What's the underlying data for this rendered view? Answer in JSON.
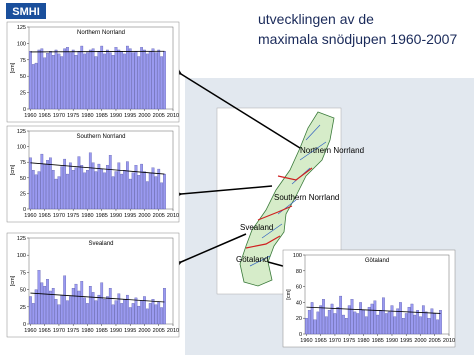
{
  "header": {
    "logo": "SMHI",
    "title_line1": "utvecklingen av de",
    "title_line2": "maximala snödjupen 1960-2007"
  },
  "map": {
    "labels": [
      "Northern Norrland",
      "Southern Norrland",
      "Svealand",
      "Götaland"
    ]
  },
  "chart_data": [
    {
      "type": "bar",
      "title": "Northern Norrland",
      "y_label": "[cm]",
      "color": "#9a9af0",
      "x": [
        1960,
        1961,
        1962,
        1963,
        1964,
        1965,
        1966,
        1967,
        1968,
        1969,
        1970,
        1971,
        1972,
        1973,
        1974,
        1975,
        1976,
        1977,
        1978,
        1979,
        1980,
        1981,
        1982,
        1983,
        1984,
        1985,
        1986,
        1987,
        1988,
        1989,
        1990,
        1991,
        1992,
        1993,
        1994,
        1995,
        1996,
        1997,
        1998,
        1999,
        2000,
        2001,
        2002,
        2003,
        2004,
        2005,
        2006,
        2007
      ],
      "values": [
        88,
        68,
        70,
        90,
        92,
        78,
        85,
        88,
        82,
        90,
        84,
        80,
        92,
        94,
        86,
        90,
        82,
        88,
        96,
        84,
        86,
        90,
        92,
        80,
        88,
        96,
        84,
        90,
        86,
        82,
        94,
        90,
        88,
        84,
        96,
        92,
        86,
        88,
        80,
        94,
        90,
        84,
        88,
        92,
        86,
        90,
        80,
        88
      ],
      "trend": {
        "x": [
          1960,
          2007
        ],
        "values": [
          87,
          88
        ]
      },
      "xlim": [
        1959.5,
        2010
      ],
      "xticks": [
        1960,
        1965,
        1970,
        1975,
        1980,
        1985,
        1990,
        1995,
        2000,
        2005,
        2010
      ],
      "ylim": [
        0,
        125
      ],
      "yticks": [
        0,
        25,
        50,
        75,
        100,
        125
      ]
    },
    {
      "type": "bar",
      "title": "Southern Norrland",
      "y_label": "[cm]",
      "color": "#9a9af0",
      "x": [
        1960,
        1961,
        1962,
        1963,
        1964,
        1965,
        1966,
        1967,
        1968,
        1969,
        1970,
        1971,
        1972,
        1973,
        1974,
        1975,
        1976,
        1977,
        1978,
        1979,
        1980,
        1981,
        1982,
        1983,
        1984,
        1985,
        1986,
        1987,
        1988,
        1989,
        1990,
        1991,
        1992,
        1993,
        1994,
        1995,
        1996,
        1997,
        1998,
        1999,
        2000,
        2001,
        2002,
        2003,
        2004,
        2005,
        2006,
        2007
      ],
      "values": [
        82,
        62,
        55,
        60,
        88,
        72,
        78,
        82,
        62,
        48,
        52,
        68,
        80,
        56,
        74,
        62,
        66,
        84,
        70,
        58,
        62,
        90,
        74,
        60,
        72,
        64,
        58,
        70,
        86,
        52,
        60,
        74,
        56,
        62,
        76,
        48,
        58,
        70,
        54,
        72,
        60,
        44,
        58,
        66,
        52,
        64,
        42,
        56
      ],
      "trend": {
        "x": [
          1960,
          2007
        ],
        "values": [
          74,
          56
        ]
      },
      "xlim": [
        1959.5,
        2010
      ],
      "xticks": [
        1960,
        1965,
        1970,
        1975,
        1980,
        1985,
        1990,
        1995,
        2000,
        2005,
        2010
      ],
      "ylim": [
        0,
        125
      ],
      "yticks": [
        0,
        25,
        50,
        75,
        100,
        125
      ]
    },
    {
      "type": "bar",
      "title": "Svealand",
      "y_label": "[cm]",
      "color": "#9a9af0",
      "x": [
        1960,
        1961,
        1962,
        1963,
        1964,
        1965,
        1966,
        1967,
        1968,
        1969,
        1970,
        1971,
        1972,
        1973,
        1974,
        1975,
        1976,
        1977,
        1978,
        1979,
        1980,
        1981,
        1982,
        1983,
        1984,
        1985,
        1986,
        1987,
        1988,
        1989,
        1990,
        1991,
        1992,
        1993,
        1994,
        1995,
        1996,
        1997,
        1998,
        1999,
        2000,
        2001,
        2002,
        2003,
        2004,
        2005,
        2006,
        2007
      ],
      "values": [
        40,
        30,
        50,
        78,
        60,
        55,
        65,
        48,
        52,
        36,
        28,
        42,
        70,
        34,
        40,
        52,
        58,
        48,
        62,
        38,
        30,
        55,
        46,
        34,
        42,
        60,
        36,
        40,
        52,
        28,
        34,
        44,
        30,
        36,
        42,
        24,
        30,
        38,
        26,
        34,
        40,
        22,
        30,
        36,
        28,
        32,
        24,
        52
      ],
      "trend": {
        "x": [
          1960,
          2007
        ],
        "values": [
          45,
          32
        ]
      },
      "xlim": [
        1959.5,
        2010
      ],
      "xticks": [
        1960,
        1965,
        1970,
        1975,
        1980,
        1985,
        1990,
        1995,
        2000,
        2005,
        2010
      ],
      "ylim": [
        0,
        125
      ],
      "yticks": [
        0,
        25,
        50,
        75,
        100,
        125
      ]
    },
    {
      "type": "bar",
      "title": "Götaland",
      "y_label": "[cm]",
      "color": "#9a9af0",
      "x": [
        1960,
        1961,
        1962,
        1963,
        1964,
        1965,
        1966,
        1967,
        1968,
        1969,
        1970,
        1971,
        1972,
        1973,
        1974,
        1975,
        1976,
        1977,
        1978,
        1979,
        1980,
        1981,
        1982,
        1983,
        1984,
        1985,
        1986,
        1987,
        1988,
        1989,
        1990,
        1991,
        1992,
        1993,
        1994,
        1995,
        1996,
        1997,
        1998,
        1999,
        2000,
        2001,
        2002,
        2003,
        2004,
        2005,
        2006,
        2007
      ],
      "values": [
        20,
        30,
        40,
        18,
        28,
        36,
        44,
        22,
        30,
        38,
        26,
        34,
        48,
        24,
        20,
        36,
        44,
        28,
        26,
        40,
        30,
        22,
        34,
        38,
        42,
        24,
        30,
        46,
        26,
        28,
        36,
        22,
        32,
        40,
        20,
        26,
        34,
        38,
        24,
        30,
        22,
        36,
        28,
        20,
        32,
        26,
        18,
        30
      ],
      "trend": {
        "x": [
          1960,
          2007
        ],
        "values": [
          34,
          26
        ]
      },
      "xlim": [
        1959.5,
        2010
      ],
      "xticks": [
        1960,
        1965,
        1970,
        1975,
        1980,
        1985,
        1990,
        1995,
        2000,
        2005,
        2010
      ],
      "ylim": [
        0,
        100
      ],
      "yticks": [
        0,
        20,
        40,
        60,
        80,
        100
      ]
    }
  ]
}
